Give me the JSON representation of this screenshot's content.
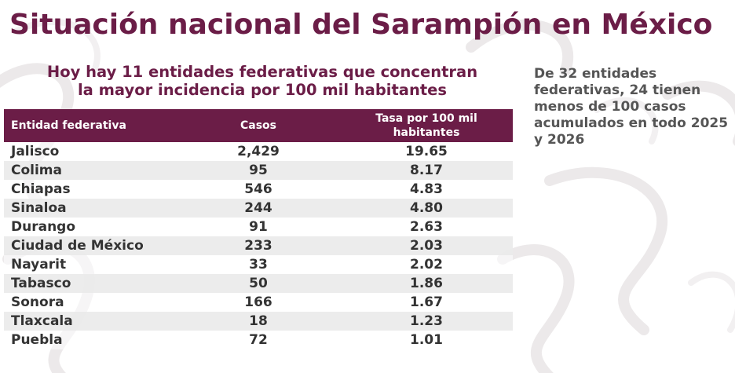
{
  "title": "Situación nacional del Sarampión en México",
  "subtitle_line1": "Hoy hay 11 entidades federativas que concentran",
  "subtitle_line2": "la mayor incidencia por 100 mil habitantes",
  "side_note": "De 32 entidades federativas, 24 tienen menos de 100 casos acumulados en todo 2025 y 2026",
  "colors": {
    "brand": "#6b1d47",
    "text": "#333333",
    "note": "#555555",
    "row_alt": "#eaeaea"
  },
  "table": {
    "headers": {
      "entity": "Entidad federativa",
      "cases": "Casos",
      "rate_line1": "Tasa por 100 mil",
      "rate_line2": "habitantes"
    },
    "rows": [
      {
        "entity": "Jalisco",
        "cases": "2,429",
        "rate": "19.65"
      },
      {
        "entity": "Colima",
        "cases": "95",
        "rate": "8.17"
      },
      {
        "entity": "Chiapas",
        "cases": "546",
        "rate": "4.83"
      },
      {
        "entity": "Sinaloa",
        "cases": "244",
        "rate": "4.80"
      },
      {
        "entity": "Durango",
        "cases": "91",
        "rate": "2.63"
      },
      {
        "entity": "Ciudad de México",
        "cases": "233",
        "rate": "2.03"
      },
      {
        "entity": "Nayarit",
        "cases": "33",
        "rate": "2.02"
      },
      {
        "entity": "Tabasco",
        "cases": "50",
        "rate": "1.86"
      },
      {
        "entity": "Sonora",
        "cases": "166",
        "rate": "1.67"
      },
      {
        "entity": "Tlaxcala",
        "cases": "18",
        "rate": "1.23"
      },
      {
        "entity": "Puebla",
        "cases": "72",
        "rate": "1.01"
      }
    ]
  }
}
